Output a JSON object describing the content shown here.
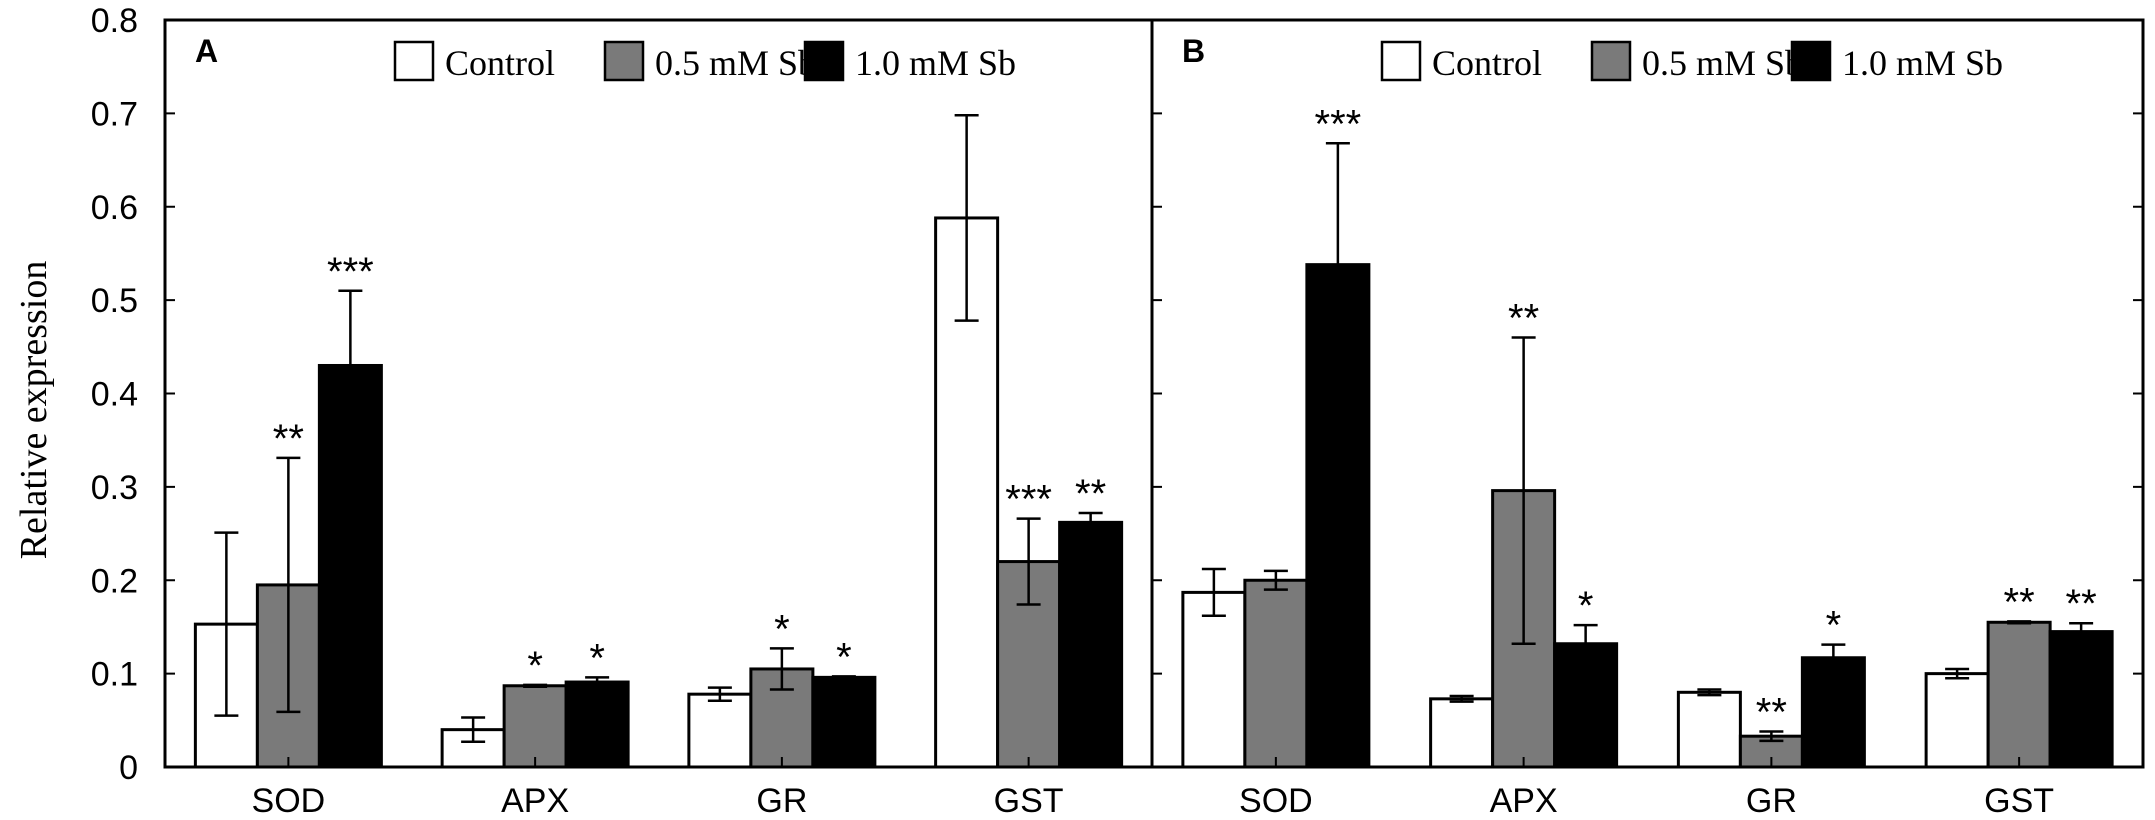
{
  "chart_data": [
    {
      "type": "bar",
      "panel": "A",
      "categories": [
        "SOD",
        "APX",
        "GR",
        "GST"
      ],
      "ylabel": "Relative expression",
      "ylim": [
        0,
        0.8
      ],
      "yticks": [
        "0",
        "0.1",
        "0.2",
        "0.3",
        "0.4",
        "0.5",
        "0.6",
        "0.7",
        "0.8"
      ],
      "legend_position": "top-right",
      "series": [
        {
          "name": "Control",
          "color": "#ffffff",
          "values": [
            0.153,
            0.04,
            0.078,
            0.588
          ],
          "errors": [
            0.098,
            0.013,
            0.007,
            0.11
          ],
          "significance": [
            "",
            "",
            "",
            ""
          ]
        },
        {
          "name": "0.5 mM Sb",
          "color": "#7a7a7a",
          "values": [
            0.195,
            0.087,
            0.105,
            0.22
          ],
          "errors": [
            0.136,
            0.001,
            0.022,
            0.046
          ],
          "significance": [
            "**",
            "*",
            "*",
            "***"
          ]
        },
        {
          "name": "1.0 mM Sb",
          "color": "#000000",
          "values": [
            0.43,
            0.091,
            0.096,
            0.262
          ],
          "errors": [
            0.08,
            0.005,
            0.001,
            0.01
          ],
          "significance": [
            "***",
            "*",
            "*",
            "**"
          ]
        }
      ]
    },
    {
      "type": "bar",
      "panel": "B",
      "categories": [
        "SOD",
        "APX",
        "GR",
        "GST"
      ],
      "ylabel": "",
      "ylim": [
        0,
        0.8
      ],
      "legend_position": "top-right",
      "series": [
        {
          "name": "Control",
          "color": "#ffffff",
          "values": [
            0.187,
            0.073,
            0.08,
            0.1
          ],
          "errors": [
            0.025,
            0.003,
            0.003,
            0.005
          ],
          "significance": [
            "",
            "",
            "",
            ""
          ]
        },
        {
          "name": "0.5 mM Sb",
          "color": "#7a7a7a",
          "values": [
            0.2,
            0.296,
            0.033,
            0.155
          ],
          "errors": [
            0.01,
            0.164,
            0.005,
            0.001
          ],
          "significance": [
            "",
            "**",
            "**",
            "**"
          ]
        },
        {
          "name": "1.0 mM Sb",
          "color": "#000000",
          "values": [
            0.538,
            0.132,
            0.117,
            0.145
          ],
          "errors": [
            0.13,
            0.02,
            0.014,
            0.009
          ],
          "significance": [
            "***",
            "*",
            "*",
            "**"
          ]
        }
      ]
    }
  ]
}
